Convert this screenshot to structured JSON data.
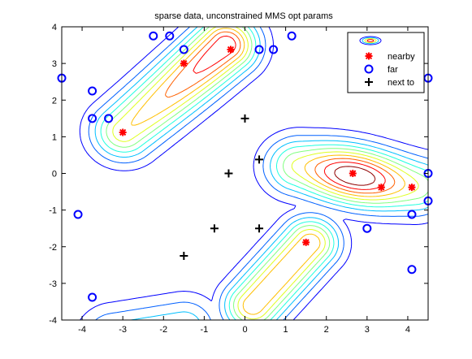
{
  "chart_data": {
    "type": "scatter",
    "title": "sparse data, unconstrained MMS opt params",
    "xlabel": "",
    "ylabel": "",
    "xlim": [
      -4.5,
      4.5
    ],
    "ylim": [
      -4,
      4
    ],
    "x_ticks": [
      -4,
      -3,
      -2,
      -1,
      0,
      1,
      2,
      3,
      4
    ],
    "y_ticks": [
      4,
      3,
      2,
      1,
      0,
      -1,
      -2,
      -3,
      -4
    ],
    "grid": false,
    "legend_position": "top-right",
    "contour_levels": 10,
    "contour_colors": [
      "#00008f",
      "#0000ff",
      "#0060ff",
      "#00bfff",
      "#20ffdf",
      "#80ff80",
      "#dfff20",
      "#ffbf00",
      "#ff6000",
      "#ff0000",
      "#8f0000"
    ],
    "series": [
      {
        "name": "nearby",
        "marker": "asterisk",
        "color": "#ff0000",
        "x": [
          -3.0,
          -1.5,
          -0.35,
          2.65,
          3.35,
          4.1,
          1.5
        ],
        "y": [
          1.12,
          3.0,
          3.38,
          0.0,
          -0.38,
          -0.38,
          -1.88
        ]
      },
      {
        "name": "far",
        "marker": "circle",
        "color": "#0000ff",
        "x": [
          -4.5,
          -3.75,
          -3.75,
          -3.35,
          -2.25,
          -1.85,
          -1.5,
          0.35,
          0.7,
          1.15,
          -4.1,
          -3.75,
          4.5,
          4.5,
          4.5,
          3.0,
          4.1,
          4.1
        ],
        "y": [
          2.6,
          2.25,
          1.5,
          1.5,
          3.75,
          3.75,
          3.38,
          3.38,
          3.38,
          3.75,
          -1.12,
          -3.38,
          2.6,
          0.0,
          -0.75,
          -1.5,
          -1.12,
          -2.62
        ]
      },
      {
        "name": "next to",
        "marker": "plus",
        "color": "#000000",
        "x": [
          -0.4,
          0.0,
          0.35,
          -0.75,
          0.35,
          -1.5
        ],
        "y": [
          0.0,
          1.5,
          0.38,
          -1.5,
          -1.5,
          -2.25
        ]
      }
    ]
  }
}
